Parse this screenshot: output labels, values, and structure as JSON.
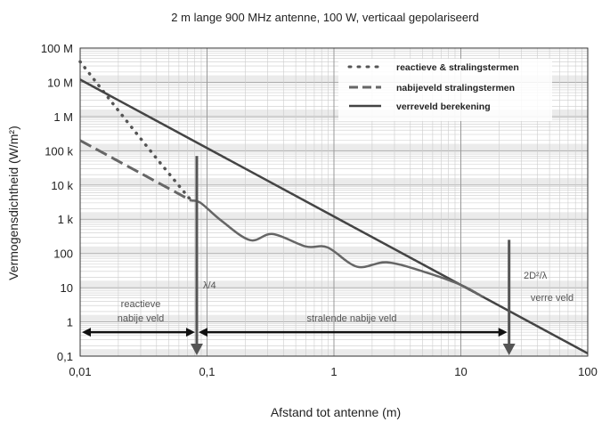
{
  "chart_data": {
    "type": "line",
    "title": "2 m lange 900 MHz antenne, 100 W, verticaal gepolariseerd",
    "xlabel": "Afstand tot antenne (m)",
    "ylabel": "Vermogensdichtheid (W/m²)",
    "xscale": "log",
    "yscale": "log",
    "xlim": [
      0.01,
      100
    ],
    "ylim": [
      0.1,
      100000000
    ],
    "grid": true,
    "legend_position": "top-right",
    "x_ticks": [
      0.01,
      0.1,
      1,
      10,
      100
    ],
    "x_tick_labels": [
      "0,01",
      "0,1",
      "1",
      "10",
      "100"
    ],
    "y_ticks": [
      100000000,
      10000000,
      1000000,
      100000,
      10000,
      1000,
      100,
      10,
      1,
      0.1
    ],
    "y_tick_labels": [
      "100 M",
      "10 M",
      "1 M",
      "100 k",
      "10 k",
      "1 k",
      "100",
      "10",
      "1",
      "0,1"
    ],
    "colors": {
      "reactive": "#555555",
      "nearfield": "#666666",
      "farfield": "#444444",
      "computed": "#666666",
      "grid": "#cccccc"
    },
    "series": [
      {
        "name": "reactieve & stralingstermen",
        "style": "dotted",
        "x": [
          0.01,
          0.02,
          0.04,
          0.075
        ],
        "y": [
          40000000,
          1500000,
          60000,
          3500
        ]
      },
      {
        "name": "nabijeveld stralingstermen",
        "style": "dashed",
        "x": [
          0.01,
          0.03,
          0.075
        ],
        "y": [
          200000,
          22000,
          3500
        ]
      },
      {
        "name": "verreveld berekening",
        "style": "solid",
        "x": [
          0.01,
          100
        ],
        "y": [
          12000000,
          0.12
        ]
      },
      {
        "style": "solid",
        "x": [
          0.075,
          0.089,
          0.13,
          0.218,
          0.33,
          0.6,
          0.89,
          1.52,
          2.6,
          5,
          10,
          15
        ],
        "y": [
          3500,
          3000,
          900,
          245,
          370,
          160,
          150,
          41,
          55,
          30,
          12,
          5.3
        ]
      }
    ],
    "annotations": {
      "lambda4": {
        "label": "λ/4",
        "x": 0.083,
        "y_top": 70000
      },
      "far": {
        "label": "2D²/λ",
        "x": 24,
        "y_top": 250
      },
      "regions": [
        {
          "label_1": "reactieve",
          "label_2": "nabije veld",
          "x_from": 0.01,
          "x_to": 0.083
        },
        {
          "label": "stralende nabije veld",
          "x_from": 0.083,
          "x_to": 24
        },
        {
          "label": "verre veld"
        }
      ],
      "arrow_y": 0.5
    }
  }
}
